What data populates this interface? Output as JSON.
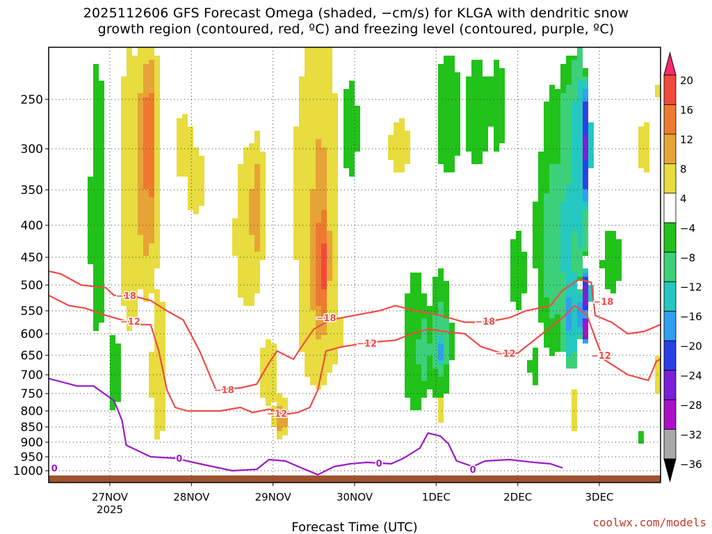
{
  "chart_data": {
    "type": "heatmap",
    "title_line1": "2025112606 GFS Forecast Omega (shaded, −cm/s) for KLGA with dendritic snow",
    "title_line2": "growth region (contoured, red, ºC) and freezing level (contoured, purple, ºC)",
    "xlabel": "Forecast Time (UTC)",
    "ylabel": "",
    "credit": "coolwx.com/models",
    "x_start_day": 26.25,
    "x_end_day": 33.75,
    "x_ticks": [
      {
        "day": 27,
        "label": "27NOV",
        "sub": "2025"
      },
      {
        "day": 28,
        "label": "28NOV",
        "sub": ""
      },
      {
        "day": 29,
        "label": "29NOV",
        "sub": ""
      },
      {
        "day": 30,
        "label": "30NOV",
        "sub": ""
      },
      {
        "day": 31,
        "label": "1DEC",
        "sub": ""
      },
      {
        "day": 32,
        "label": "2DEC",
        "sub": ""
      },
      {
        "day": 33,
        "label": "3DEC",
        "sub": ""
      }
    ],
    "y_ticks": [
      250,
      300,
      350,
      400,
      450,
      500,
      550,
      600,
      650,
      700,
      750,
      800,
      850,
      900,
      950,
      1000
    ],
    "colorbar": {
      "labels": [
        "20",
        "16",
        "12",
        "8",
        "4",
        "−4",
        "−8",
        "−12",
        "−16",
        "−20",
        "−24",
        "−28",
        "−32",
        "−36"
      ],
      "colors": [
        "#ff2a6a",
        "#f24a3c",
        "#ee7a30",
        "#e6a436",
        "#e8dc3e",
        "#ffffff",
        "#21c21a",
        "#3cd07a",
        "#24c8c0",
        "#30a0f0",
        "#2a40e6",
        "#7a20d8",
        "#aa10c8",
        "#a8a8a8",
        "#000000"
      ]
    },
    "omega_blobs": [
      {
        "day": 26.85,
        "p": 400,
        "w": 0.12,
        "dp": 520,
        "v": -6
      },
      {
        "day": 27.05,
        "p": 700,
        "w": 0.1,
        "dp": 260,
        "v": -6
      },
      {
        "day": 27.02,
        "p": 470,
        "w": 0.08,
        "dp": 380,
        "v": 4
      },
      {
        "day": 27.25,
        "p": 380,
        "w": 0.15,
        "dp": 560,
        "v": 6
      },
      {
        "day": 27.45,
        "p": 330,
        "w": 0.18,
        "dp": 400,
        "v": 10
      },
      {
        "day": 27.48,
        "p": 300,
        "w": 0.07,
        "dp": 240,
        "v": 16
      },
      {
        "day": 27.6,
        "p": 700,
        "w": 0.12,
        "dp": 500,
        "v": 6
      },
      {
        "day": 27.9,
        "p": 300,
        "w": 0.18,
        "dp": 120,
        "v": 5
      },
      {
        "day": 28.05,
        "p": 340,
        "w": 0.2,
        "dp": 140,
        "v": 5
      },
      {
        "day": 28.15,
        "p": 620,
        "w": 0.12,
        "dp": 220,
        "v": 4
      },
      {
        "day": 28.7,
        "p": 420,
        "w": 0.22,
        "dp": 320,
        "v": 6
      },
      {
        "day": 28.8,
        "p": 380,
        "w": 0.12,
        "dp": 200,
        "v": 10
      },
      {
        "day": 28.95,
        "p": 700,
        "w": 0.15,
        "dp": 220,
        "v": 6
      },
      {
        "day": 29.1,
        "p": 820,
        "w": 0.1,
        "dp": 140,
        "v": 10
      },
      {
        "day": 29.35,
        "p": 350,
        "w": 0.15,
        "dp": 360,
        "v": 5
      },
      {
        "day": 29.55,
        "p": 430,
        "w": 0.28,
        "dp": 650,
        "v": 8
      },
      {
        "day": 29.58,
        "p": 450,
        "w": 0.15,
        "dp": 420,
        "v": 12
      },
      {
        "day": 29.6,
        "p": 470,
        "w": 0.08,
        "dp": 260,
        "v": 18
      },
      {
        "day": 29.75,
        "p": 600,
        "w": 0.15,
        "dp": 240,
        "v": 5
      },
      {
        "day": 29.95,
        "p": 280,
        "w": 0.12,
        "dp": 140,
        "v": -6
      },
      {
        "day": 30.1,
        "p": 340,
        "w": 0.12,
        "dp": 160,
        "v": 4
      },
      {
        "day": 30.35,
        "p": 280,
        "w": 0.12,
        "dp": 120,
        "v": 4
      },
      {
        "day": 30.55,
        "p": 300,
        "w": 0.2,
        "dp": 100,
        "v": 5
      },
      {
        "day": 30.75,
        "p": 640,
        "w": 0.2,
        "dp": 420,
        "v": -6
      },
      {
        "day": 30.85,
        "p": 640,
        "w": 0.12,
        "dp": 240,
        "v": -10
      },
      {
        "day": 31.05,
        "p": 620,
        "w": 0.15,
        "dp": 300,
        "v": -10
      },
      {
        "day": 31.05,
        "p": 640,
        "w": 0.05,
        "dp": 90,
        "v": -18
      },
      {
        "day": 31.05,
        "p": 800,
        "w": 0.06,
        "dp": 80,
        "v": 8
      },
      {
        "day": 31.15,
        "p": 260,
        "w": 0.2,
        "dp": 180,
        "v": -6
      },
      {
        "day": 31.5,
        "p": 260,
        "w": 0.18,
        "dp": 160,
        "v": -6
      },
      {
        "day": 31.75,
        "p": 250,
        "w": 0.12,
        "dp": 140,
        "v": -6
      },
      {
        "day": 32.0,
        "p": 480,
        "w": 0.12,
        "dp": 180,
        "v": -6
      },
      {
        "day": 32.25,
        "p": 420,
        "w": 0.12,
        "dp": 140,
        "v": -6
      },
      {
        "day": 32.45,
        "p": 440,
        "w": 0.22,
        "dp": 420,
        "v": -10
      },
      {
        "day": 32.6,
        "p": 420,
        "w": 0.15,
        "dp": 460,
        "v": -13
      },
      {
        "day": 32.65,
        "p": 560,
        "w": 0.12,
        "dp": 260,
        "v": -17
      },
      {
        "day": 32.75,
        "p": 330,
        "w": 0.12,
        "dp": 320,
        "v": -16
      },
      {
        "day": 32.8,
        "p": 560,
        "w": 0.07,
        "dp": 120,
        "v": -22
      },
      {
        "day": 32.85,
        "p": 300,
        "w": 0.05,
        "dp": 170,
        "v": -27
      },
      {
        "day": 32.85,
        "p": 520,
        "w": 0.05,
        "dp": 110,
        "v": -28
      },
      {
        "day": 32.85,
        "p": 590,
        "w": 0.035,
        "dp": 70,
        "v": -38
      },
      {
        "day": 32.7,
        "p": 800,
        "w": 0.04,
        "dp": 160,
        "v": 6
      },
      {
        "day": 32.2,
        "p": 680,
        "w": 0.07,
        "dp": 120,
        "v": -6
      },
      {
        "day": 33.15,
        "p": 460,
        "w": 0.15,
        "dp": 140,
        "v": -6
      },
      {
        "day": 33.55,
        "p": 300,
        "w": 0.08,
        "dp": 120,
        "v": 5
      },
      {
        "day": 33.5,
        "p": 880,
        "w": 0.04,
        "dp": 60,
        "v": -6
      },
      {
        "day": 33.7,
        "p": 700,
        "w": 0.04,
        "dp": 200,
        "v": 5
      },
      {
        "day": 33.7,
        "p": 240,
        "w": 0.03,
        "dp": 60,
        "v": 5
      }
    ],
    "contours": [
      {
        "name": "freezing-level-0C",
        "color": "#9a18c8",
        "label": "0",
        "points": [
          [
            26.25,
            710
          ],
          [
            26.6,
            730
          ],
          [
            26.8,
            730
          ],
          [
            27.05,
            770
          ],
          [
            27.15,
            830
          ],
          [
            27.2,
            910
          ],
          [
            27.5,
            950
          ],
          [
            27.8,
            955
          ],
          [
            28.1,
            975
          ],
          [
            28.5,
            1000
          ],
          [
            28.8,
            995
          ],
          [
            28.95,
            960
          ],
          [
            29.15,
            965
          ],
          [
            29.35,
            990
          ],
          [
            29.55,
            1010
          ],
          [
            29.75,
            985
          ],
          [
            29.95,
            975
          ],
          [
            30.15,
            970
          ],
          [
            30.45,
            975
          ],
          [
            30.6,
            955
          ],
          [
            30.8,
            920
          ],
          [
            30.9,
            870
          ],
          [
            31.05,
            880
          ],
          [
            31.15,
            905
          ],
          [
            31.25,
            965
          ],
          [
            31.45,
            985
          ],
          [
            31.6,
            965
          ],
          [
            31.9,
            960
          ],
          [
            32.2,
            970
          ],
          [
            32.4,
            975
          ],
          [
            32.55,
            990
          ]
        ],
        "labels_at": [
          [
            26.32,
            990
          ],
          [
            27.85,
            955
          ],
          [
            30.3,
            972
          ],
          [
            31.45,
            995
          ]
        ]
      },
      {
        "name": "dgz-minus12C",
        "color": "#f04a46",
        "label": "−12",
        "points": [
          [
            26.25,
            520
          ],
          [
            26.5,
            540
          ],
          [
            26.7,
            545
          ],
          [
            26.95,
            560
          ],
          [
            27.15,
            570
          ],
          [
            27.3,
            580
          ],
          [
            27.5,
            580
          ],
          [
            27.6,
            640
          ],
          [
            27.7,
            740
          ],
          [
            27.8,
            790
          ],
          [
            27.95,
            800
          ],
          [
            28.35,
            800
          ],
          [
            28.6,
            790
          ],
          [
            28.75,
            805
          ],
          [
            28.95,
            795
          ],
          [
            29.15,
            810
          ],
          [
            29.3,
            805
          ],
          [
            29.45,
            790
          ],
          [
            29.55,
            740
          ],
          [
            29.65,
            640
          ],
          [
            29.85,
            630
          ],
          [
            30.2,
            620
          ],
          [
            30.5,
            615
          ],
          [
            30.7,
            600
          ],
          [
            30.9,
            590
          ],
          [
            31.1,
            595
          ],
          [
            31.35,
            600
          ],
          [
            31.55,
            630
          ],
          [
            31.8,
            645
          ],
          [
            32.0,
            645
          ],
          [
            32.3,
            600
          ],
          [
            32.55,
            565
          ],
          [
            32.7,
            540
          ],
          [
            32.85,
            560
          ],
          [
            32.95,
            610
          ],
          [
            33.05,
            660
          ],
          [
            33.35,
            700
          ],
          [
            33.6,
            715
          ],
          [
            33.7,
            665
          ],
          [
            33.75,
            660
          ]
        ],
        "labels_at": [
          [
            27.25,
            573
          ],
          [
            29.05,
            808
          ],
          [
            30.15,
            622
          ],
          [
            31.85,
            645
          ],
          [
            33.02,
            650
          ]
        ]
      },
      {
        "name": "dgz-minus18C",
        "color": "#f04a46",
        "label": "−18",
        "points": [
          [
            26.25,
            475
          ],
          [
            26.4,
            480
          ],
          [
            26.65,
            500
          ],
          [
            26.95,
            505
          ],
          [
            27.05,
            520
          ],
          [
            27.25,
            520
          ],
          [
            27.5,
            530
          ],
          [
            27.7,
            550
          ],
          [
            27.9,
            570
          ],
          [
            28.1,
            640
          ],
          [
            28.3,
            740
          ],
          [
            28.6,
            735
          ],
          [
            28.8,
            725
          ],
          [
            28.95,
            670
          ],
          [
            29.05,
            640
          ],
          [
            29.25,
            660
          ],
          [
            29.35,
            630
          ],
          [
            29.5,
            590
          ],
          [
            29.7,
            570
          ],
          [
            30.0,
            560
          ],
          [
            30.3,
            550
          ],
          [
            30.5,
            540
          ],
          [
            30.75,
            550
          ],
          [
            31.05,
            560
          ],
          [
            31.35,
            575
          ],
          [
            31.6,
            575
          ],
          [
            31.9,
            565
          ],
          [
            32.1,
            550
          ],
          [
            32.4,
            540
          ],
          [
            32.55,
            510
          ],
          [
            32.75,
            490
          ],
          [
            32.9,
            495
          ],
          [
            32.95,
            560
          ],
          [
            33.15,
            575
          ],
          [
            33.35,
            600
          ],
          [
            33.55,
            595
          ],
          [
            33.75,
            580
          ]
        ],
        "labels_at": [
          [
            27.2,
            520
          ],
          [
            28.4,
            740
          ],
          [
            29.65,
            565
          ],
          [
            31.6,
            573
          ],
          [
            33.05,
            532
          ]
        ]
      }
    ]
  }
}
